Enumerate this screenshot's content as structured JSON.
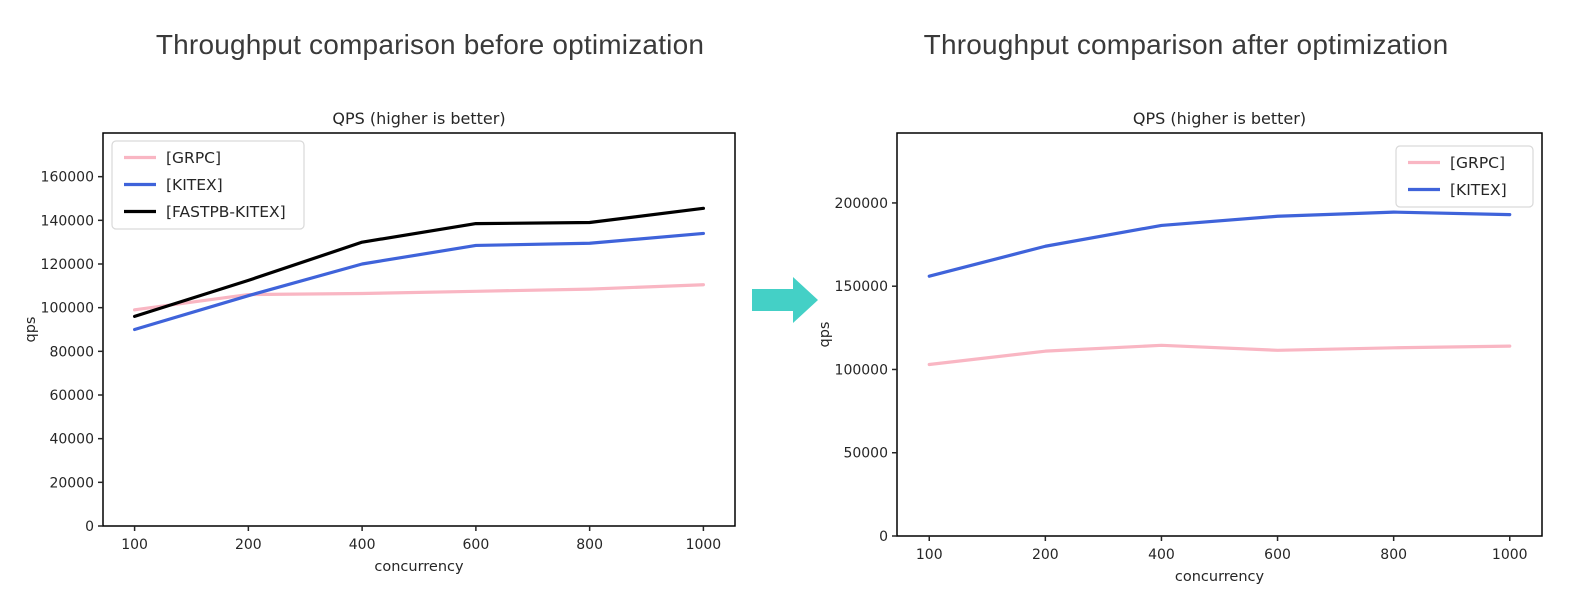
{
  "page": {
    "background": "#ffffff"
  },
  "arrow": {
    "label": "before-to-after",
    "color": "#44d0c6"
  },
  "chart_data": [
    {
      "figure_title": "Throughput comparison before optimization",
      "type": "line",
      "title": "QPS (higher is better)",
      "xlabel": "concurrency",
      "ylabel": "qps",
      "categories": [
        100,
        200,
        400,
        600,
        800,
        1000
      ],
      "series": [
        {
          "name": "[GRPC]",
          "color": "#f9b6c3",
          "values": [
            99000,
            106000,
            106500,
            107500,
            108500,
            110500
          ]
        },
        {
          "name": "[KITEX]",
          "color": "#3f63da",
          "values": [
            90000,
            105500,
            120000,
            128500,
            129500,
            134000
          ]
        },
        {
          "name": "[FASTPB-KITEX]",
          "color": "#000000",
          "values": [
            96000,
            112500,
            130000,
            138500,
            139000,
            145500
          ]
        }
      ],
      "ylim": [
        0,
        180000
      ],
      "yticks": [
        0,
        20000,
        40000,
        60000,
        80000,
        100000,
        120000,
        140000,
        160000
      ],
      "grid": false,
      "legend_position": "upper-left"
    },
    {
      "figure_title": "Throughput comparison after optimization",
      "type": "line",
      "title": "QPS (higher is better)",
      "xlabel": "concurrency",
      "ylabel": "qps",
      "categories": [
        100,
        200,
        400,
        600,
        800,
        1000
      ],
      "series": [
        {
          "name": "[GRPC]",
          "color": "#f9b6c3",
          "values": [
            103000,
            111000,
            114500,
            111500,
            113000,
            114000
          ]
        },
        {
          "name": "[KITEX]",
          "color": "#3f63da",
          "values": [
            156000,
            174000,
            186500,
            192000,
            194500,
            193000
          ]
        }
      ],
      "ylim": [
        0,
        242000
      ],
      "yticks": [
        0,
        50000,
        100000,
        150000,
        200000
      ],
      "grid": false,
      "legend_position": "upper-right"
    }
  ]
}
